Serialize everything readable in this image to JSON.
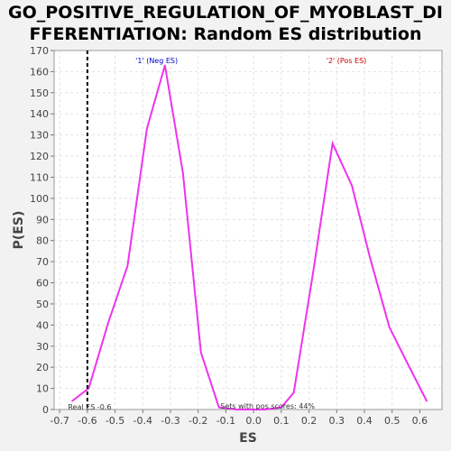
{
  "chart_data": {
    "type": "line",
    "title_line1": "GO_POSITIVE_REGULATION_OF_MYOBLAST_DI",
    "title_line2": "FFERENTIATION: Random ES distribution",
    "xlabel": "ES",
    "ylabel": "P(ES)",
    "xlim": [
      -0.72,
      0.68
    ],
    "ylim": [
      0,
      170
    ],
    "x_ticks": [
      "-0.7",
      "-0.6",
      "-0.5",
      "-0.4",
      "-0.3",
      "-0.2",
      "-0.1",
      "0.0",
      "0.1",
      "0.2",
      "0.3",
      "0.4",
      "0.5",
      "0.6"
    ],
    "y_ticks": [
      "0",
      "10",
      "20",
      "30",
      "40",
      "50",
      "60",
      "70",
      "80",
      "90",
      "100",
      "110",
      "120",
      "130",
      "140",
      "150",
      "160",
      "170"
    ],
    "grid": true,
    "series": [
      {
        "color": "#ee33ee",
        "points": [
          [
            -0.655,
            4
          ],
          [
            -0.595,
            10
          ],
          [
            -0.525,
            41
          ],
          [
            -0.455,
            68
          ],
          [
            -0.385,
            133
          ],
          [
            -0.32,
            163
          ],
          [
            -0.255,
            112
          ],
          [
            -0.19,
            27
          ],
          [
            -0.125,
            1
          ],
          [
            -0.06,
            0
          ],
          [
            0.04,
            0
          ],
          [
            0.1,
            1
          ],
          [
            0.145,
            8
          ],
          [
            0.215,
            65
          ],
          [
            0.285,
            126
          ],
          [
            0.355,
            106
          ],
          [
            0.42,
            72
          ],
          [
            0.49,
            39
          ],
          [
            0.555,
            22
          ],
          [
            0.625,
            4
          ]
        ]
      }
    ],
    "real_es": -0.6,
    "annotations": {
      "neg_label": "'1' (Neg ES)",
      "pos_label": "'2' (Pos ES)",
      "real_es_label": "Real ES -0.6",
      "pos_scores_label": "Sets with pos scores: 44%"
    },
    "colors": {
      "neg": "#0000cc",
      "pos": "#cc0000",
      "line": "#ee33ee",
      "real_es_line": "#000000"
    }
  }
}
